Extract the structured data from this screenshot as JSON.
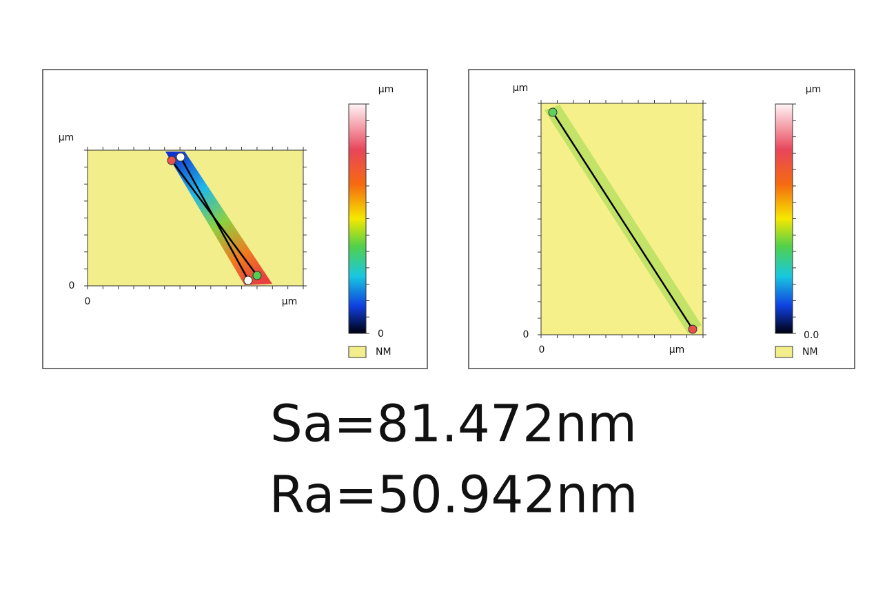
{
  "panels": [
    {
      "y_axis_label": "µm",
      "y_tick": "0",
      "x_tick_start": "0",
      "x_axis_label": "µm",
      "colorbar_unit": "µm",
      "colorbar_min": "0",
      "legend_label": "NM"
    },
    {
      "y_axis_label": "µm",
      "y_tick": "0",
      "x_tick_start": "0",
      "x_axis_label": "µm",
      "colorbar_unit": "µm",
      "colorbar_min": "0.0",
      "legend_label": "NM"
    }
  ],
  "results": [
    "Sa=81.472nm",
    "Ra=50.942nm"
  ]
}
